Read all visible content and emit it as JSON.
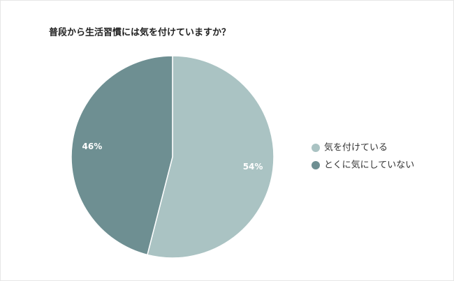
{
  "chart_data": {
    "type": "pie",
    "title": "普段から生活習慣には気を付けていますか？",
    "categories": [
      "気を付けている",
      "とくに気にしていない"
    ],
    "values": [
      54,
      46
    ],
    "value_labels": [
      "54%",
      "46%"
    ],
    "colors": [
      "#aac3c3",
      "#6e8f92"
    ],
    "legend": "right"
  }
}
